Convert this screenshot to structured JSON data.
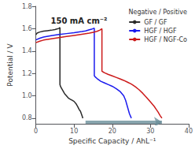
{
  "chart_data": {
    "type": "line",
    "title": "150 mA cm⁻²",
    "xlabel": "Specific Capacity / AhL⁻¹",
    "ylabel": "Potential / V",
    "xlim": [
      0,
      40
    ],
    "ylim": [
      0.75,
      1.8
    ],
    "xticks": [
      0,
      10,
      20,
      30,
      40
    ],
    "yticks": [
      0.8,
      {
        "value": 1.0,
        "label": "1.0"
      },
      1.2,
      1.4,
      1.6,
      1.8
    ],
    "grid": false,
    "legend": "upper right",
    "legend_title": "Negative / Positive",
    "series": [
      {
        "name": "GF / GF",
        "color": "#2a2a2a",
        "x": [
          0,
          0.3,
          1.0,
          2.0,
          3.0,
          4.0,
          5.0,
          5.5,
          6.0,
          6.3,
          6.3,
          6.3,
          6.3,
          6.5,
          7.0,
          7.5,
          8.0,
          8.5,
          9.0,
          9.5,
          10.0,
          10.5,
          11.0,
          11.3,
          11.5,
          11.7,
          11.9,
          12.1,
          12.3
        ],
        "values": [
          1.545,
          1.56,
          1.57,
          1.578,
          1.582,
          1.586,
          1.592,
          1.597,
          1.602,
          1.61,
          1.4,
          1.1,
          1.1,
          1.08,
          1.05,
          1.02,
          1.0,
          0.98,
          0.97,
          0.96,
          0.95,
          0.93,
          0.9,
          0.88,
          0.87,
          0.86,
          0.84,
          0.82,
          0.8
        ]
      },
      {
        "name": "HGF / HGF",
        "color": "#1a1aee",
        "x": [
          0,
          1.0,
          2.0,
          4.0,
          6.0,
          8.0,
          10.0,
          12.0,
          13.0,
          14.0,
          14.8,
          15.3,
          15.3,
          15.3,
          15.3,
          15.5,
          16.0,
          17.0,
          18.0,
          19.0,
          20.0,
          21.0,
          22.0,
          23.0,
          23.5,
          24.0,
          24.5,
          25.0
        ],
        "values": [
          1.5,
          1.515,
          1.525,
          1.538,
          1.548,
          1.556,
          1.564,
          1.574,
          1.58,
          1.59,
          1.598,
          1.605,
          1.22,
          1.18,
          1.18,
          1.17,
          1.155,
          1.13,
          1.115,
          1.1,
          1.085,
          1.065,
          1.04,
          1.0,
          0.96,
          0.9,
          0.84,
          0.8
        ]
      },
      {
        "name": "HGF / NGF-Co",
        "color": "#cc1a1a",
        "x": [
          0,
          1.0,
          2.0,
          4.0,
          6.0,
          8.0,
          10.0,
          12.0,
          14.0,
          15.0,
          16.0,
          16.8,
          17.3,
          17.3,
          17.3,
          17.3,
          17.5,
          18.0,
          19.0,
          20.0,
          21.0,
          22.0,
          23.0,
          24.0,
          25.0,
          26.0,
          27.0,
          28.0,
          29.0,
          30.0,
          31.0,
          31.5,
          32.0,
          32.5,
          33.0
        ],
        "values": [
          1.475,
          1.488,
          1.498,
          1.51,
          1.52,
          1.53,
          1.54,
          1.55,
          1.56,
          1.568,
          1.576,
          1.588,
          1.6,
          1.255,
          1.22,
          1.22,
          1.215,
          1.205,
          1.19,
          1.178,
          1.165,
          1.152,
          1.138,
          1.122,
          1.105,
          1.082,
          1.055,
          1.022,
          0.985,
          0.945,
          0.905,
          0.88,
          0.855,
          0.825,
          0.8
        ]
      }
    ],
    "arrow": {
      "x": [
        13,
        33
      ],
      "y": 0.765,
      "color": "#6a8f9a"
    }
  }
}
